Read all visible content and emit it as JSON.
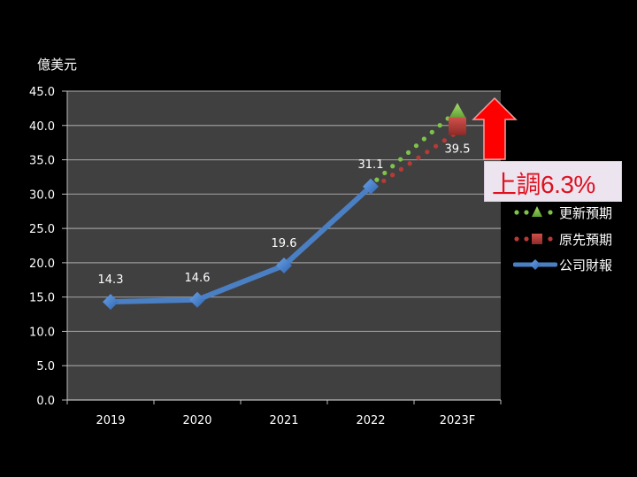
{
  "chart_data": {
    "type": "line",
    "title": "",
    "unit_label": "億美元",
    "xlabel": "",
    "ylabel": "億美元",
    "ylim": [
      0,
      45
    ],
    "yticks": [
      "0.0",
      "5.0",
      "10.0",
      "15.0",
      "20.0",
      "25.0",
      "30.0",
      "35.0",
      "40.0",
      "45.0"
    ],
    "categories": [
      "2019",
      "2020",
      "2021",
      "2022",
      "2023F"
    ],
    "grid": true,
    "legend_position": "right",
    "series": [
      {
        "name": "公司財報",
        "style": "solid line, diamond markers",
        "color": "#4a7fc4",
        "values": [
          14.3,
          14.6,
          19.6,
          31.1,
          null
        ],
        "labels": [
          "14.3",
          "14.6",
          "19.6",
          "31.1",
          ""
        ]
      },
      {
        "name": "原先預期",
        "style": "dotted, square marker",
        "color": "#b83a36",
        "values": [
          null,
          null,
          null,
          31.1,
          39.5
        ],
        "labels": [
          "",
          "",
          "",
          "",
          "39.5"
        ]
      },
      {
        "name": "更新預期",
        "style": "dotted, triangle marker",
        "color": "#7fc34a",
        "values": [
          null,
          null,
          null,
          31.1,
          42.0
        ],
        "labels": [
          "",
          "",
          "",
          "",
          ""
        ]
      }
    ],
    "annotations": [
      {
        "type": "arrow-up",
        "color": "#ff0000",
        "near": "2023F"
      },
      {
        "type": "callout",
        "text": "上調6.3%"
      }
    ]
  },
  "unit_label": "億美元",
  "callout": {
    "text": "上調6.3%"
  },
  "legend": [
    {
      "label": "更新預期",
      "color": "#7fc34a"
    },
    {
      "label": "原先預期",
      "color": "#b83a36"
    },
    {
      "label": "公司財報",
      "color": "#4a7fc4"
    }
  ]
}
